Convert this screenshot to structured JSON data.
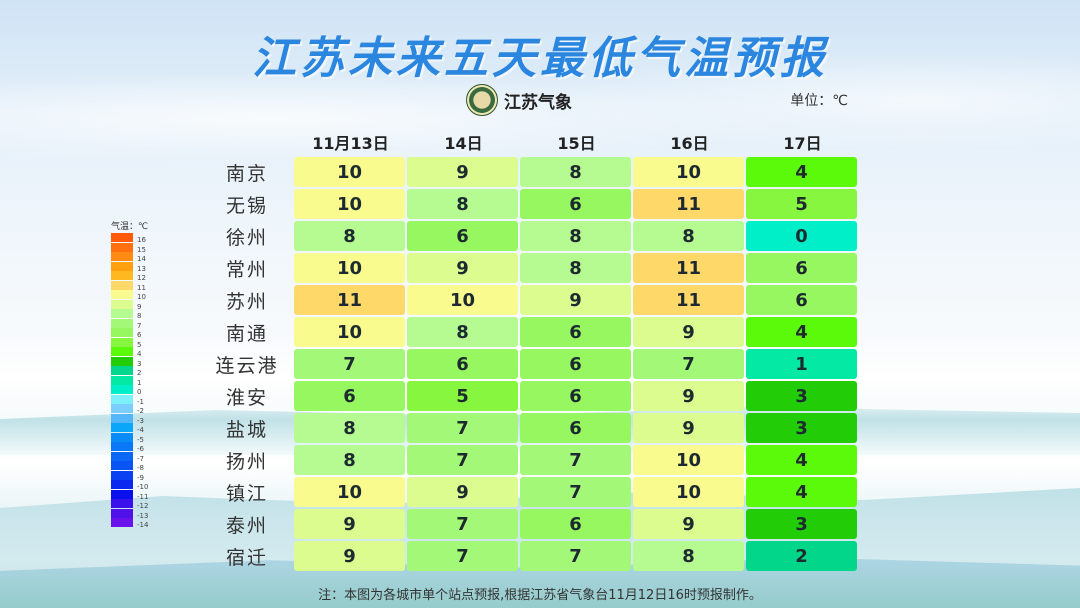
{
  "title": "江苏未来五天最低气温预报",
  "logo": {
    "text": "江苏气象",
    "icon": "jiangsu-meteorology-emblem-icon"
  },
  "unit_label": "单位：℃",
  "legend": {
    "title": "气温：℃",
    "items": [
      {
        "value": "16",
        "color": "#ff5a0a"
      },
      {
        "value": "15",
        "color": "#ff7010"
      },
      {
        "value": "14",
        "color": "#ff8a14"
      },
      {
        "value": "13",
        "color": "#ffa010"
      },
      {
        "value": "12",
        "color": "#ffb820"
      },
      {
        "value": "11",
        "color": "#ffd86a"
      },
      {
        "value": "10",
        "color": "#fafb8e"
      },
      {
        "value": "9",
        "color": "#dcfc90"
      },
      {
        "value": "8",
        "color": "#b6fb92"
      },
      {
        "value": "7",
        "color": "#a4f878"
      },
      {
        "value": "6",
        "color": "#96f760"
      },
      {
        "value": "5",
        "color": "#86f73e"
      },
      {
        "value": "4",
        "color": "#5afa0a"
      },
      {
        "value": "3",
        "color": "#22cc06"
      },
      {
        "value": "2",
        "color": "#02d68a"
      },
      {
        "value": "1",
        "color": "#04eaa4"
      },
      {
        "value": "0",
        "color": "#00eec8"
      },
      {
        "value": "-1",
        "color": "#7ef0fa"
      },
      {
        "value": "-2",
        "color": "#7ccffc"
      },
      {
        "value": "-3",
        "color": "#52b6f8"
      },
      {
        "value": "-4",
        "color": "#0aa6fa"
      },
      {
        "value": "-5",
        "color": "#0a8cf6"
      },
      {
        "value": "-6",
        "color": "#0a78f6"
      },
      {
        "value": "-7",
        "color": "#0a68f4"
      },
      {
        "value": "-8",
        "color": "#0a54f4"
      },
      {
        "value": "-9",
        "color": "#0a40f2"
      },
      {
        "value": "-10",
        "color": "#0a28f0"
      },
      {
        "value": "-11",
        "color": "#0a10ec"
      },
      {
        "value": "-12",
        "color": "#3a10ec"
      },
      {
        "value": "-13",
        "color": "#5010ea"
      },
      {
        "value": "-14",
        "color": "#6a10ea"
      }
    ]
  },
  "footnote": "注：本图为各城市单个站点预报,根据江苏省气象台11月12日16时预报制作。",
  "chart_data": {
    "type": "table",
    "title": "江苏未来五天最低气温预报",
    "unit": "℃",
    "columns": [
      "11月13日",
      "14日",
      "15日",
      "16日",
      "17日"
    ],
    "rows": [
      {
        "city": "南京",
        "values": [
          10,
          9,
          8,
          10,
          4
        ]
      },
      {
        "city": "无锡",
        "values": [
          10,
          8,
          6,
          11,
          5
        ]
      },
      {
        "city": "徐州",
        "values": [
          8,
          6,
          8,
          8,
          0
        ]
      },
      {
        "city": "常州",
        "values": [
          10,
          9,
          8,
          11,
          6
        ]
      },
      {
        "city": "苏州",
        "values": [
          11,
          10,
          9,
          11,
          6
        ]
      },
      {
        "city": "南通",
        "values": [
          10,
          8,
          6,
          9,
          4
        ]
      },
      {
        "city": "连云港",
        "values": [
          7,
          6,
          6,
          7,
          1
        ]
      },
      {
        "city": "淮安",
        "values": [
          6,
          5,
          6,
          9,
          3
        ]
      },
      {
        "city": "盐城",
        "values": [
          8,
          7,
          6,
          9,
          3
        ]
      },
      {
        "city": "扬州",
        "values": [
          8,
          7,
          7,
          10,
          4
        ]
      },
      {
        "city": "镇江",
        "values": [
          10,
          9,
          7,
          10,
          4
        ]
      },
      {
        "city": "泰州",
        "values": [
          9,
          7,
          6,
          9,
          3
        ]
      },
      {
        "city": "宿迁",
        "values": [
          9,
          7,
          7,
          8,
          2
        ]
      }
    ],
    "colorscale_range": [
      -14,
      16
    ]
  }
}
